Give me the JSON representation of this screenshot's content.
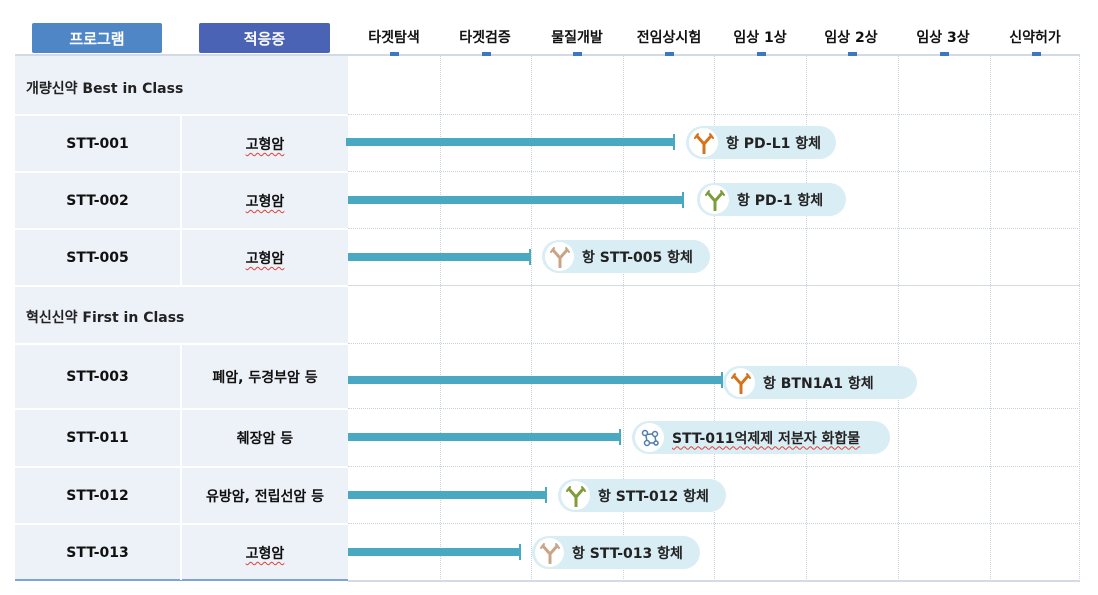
{
  "header": {
    "program_label": "프로그램",
    "indication_label": "적응증",
    "program_color": "#4f86c6",
    "indication_color": "#4a63b5",
    "stages": [
      "타겟탐색",
      "타겟검증",
      "물질개발",
      "전임상시험",
      "임상 1상",
      "임상 2상",
      "임상 3상",
      "신약허가"
    ]
  },
  "sections": [
    {
      "title": "개량신약 Best in Class"
    },
    {
      "title": "혁신신약 First in Class"
    }
  ],
  "rows": [
    {
      "program": "STT-001",
      "indication": "고형암",
      "target": "항 PD-L1 항체",
      "icon": "antibody-orange-icon"
    },
    {
      "program": "STT-002",
      "indication": "고형암",
      "target": "항 PD-1 항체",
      "icon": "antibody-green-icon"
    },
    {
      "program": "STT-005",
      "indication": "고형암",
      "target": "항 STT-005 항체",
      "icon": "antibody-beige-icon"
    },
    {
      "program": "STT-003",
      "indication": "폐암, 두경부암 등",
      "target": "항 BTN1A1 항체",
      "icon": "antibody-orange-icon"
    },
    {
      "program": "STT-011",
      "indication": "췌장암 등",
      "target": "STT-011억제제 저분자 화합물",
      "icon": "molecule-icon"
    },
    {
      "program": "STT-012",
      "indication": "유방암, 전립선암 등",
      "target": "항 STT-012 항체",
      "icon": "antibody-green-icon"
    },
    {
      "program": "STT-013",
      "indication": "고형암",
      "target": "항 STT-013 항체",
      "icon": "antibody-beige-icon"
    }
  ],
  "colors": {
    "bar": "#4aa9c2",
    "pill": "#d9edf4",
    "antibody_orange": "#d4731c",
    "antibody_green": "#7e9c3a",
    "antibody_beige": "#c9a586",
    "molecule": "#4f7fa8"
  }
}
